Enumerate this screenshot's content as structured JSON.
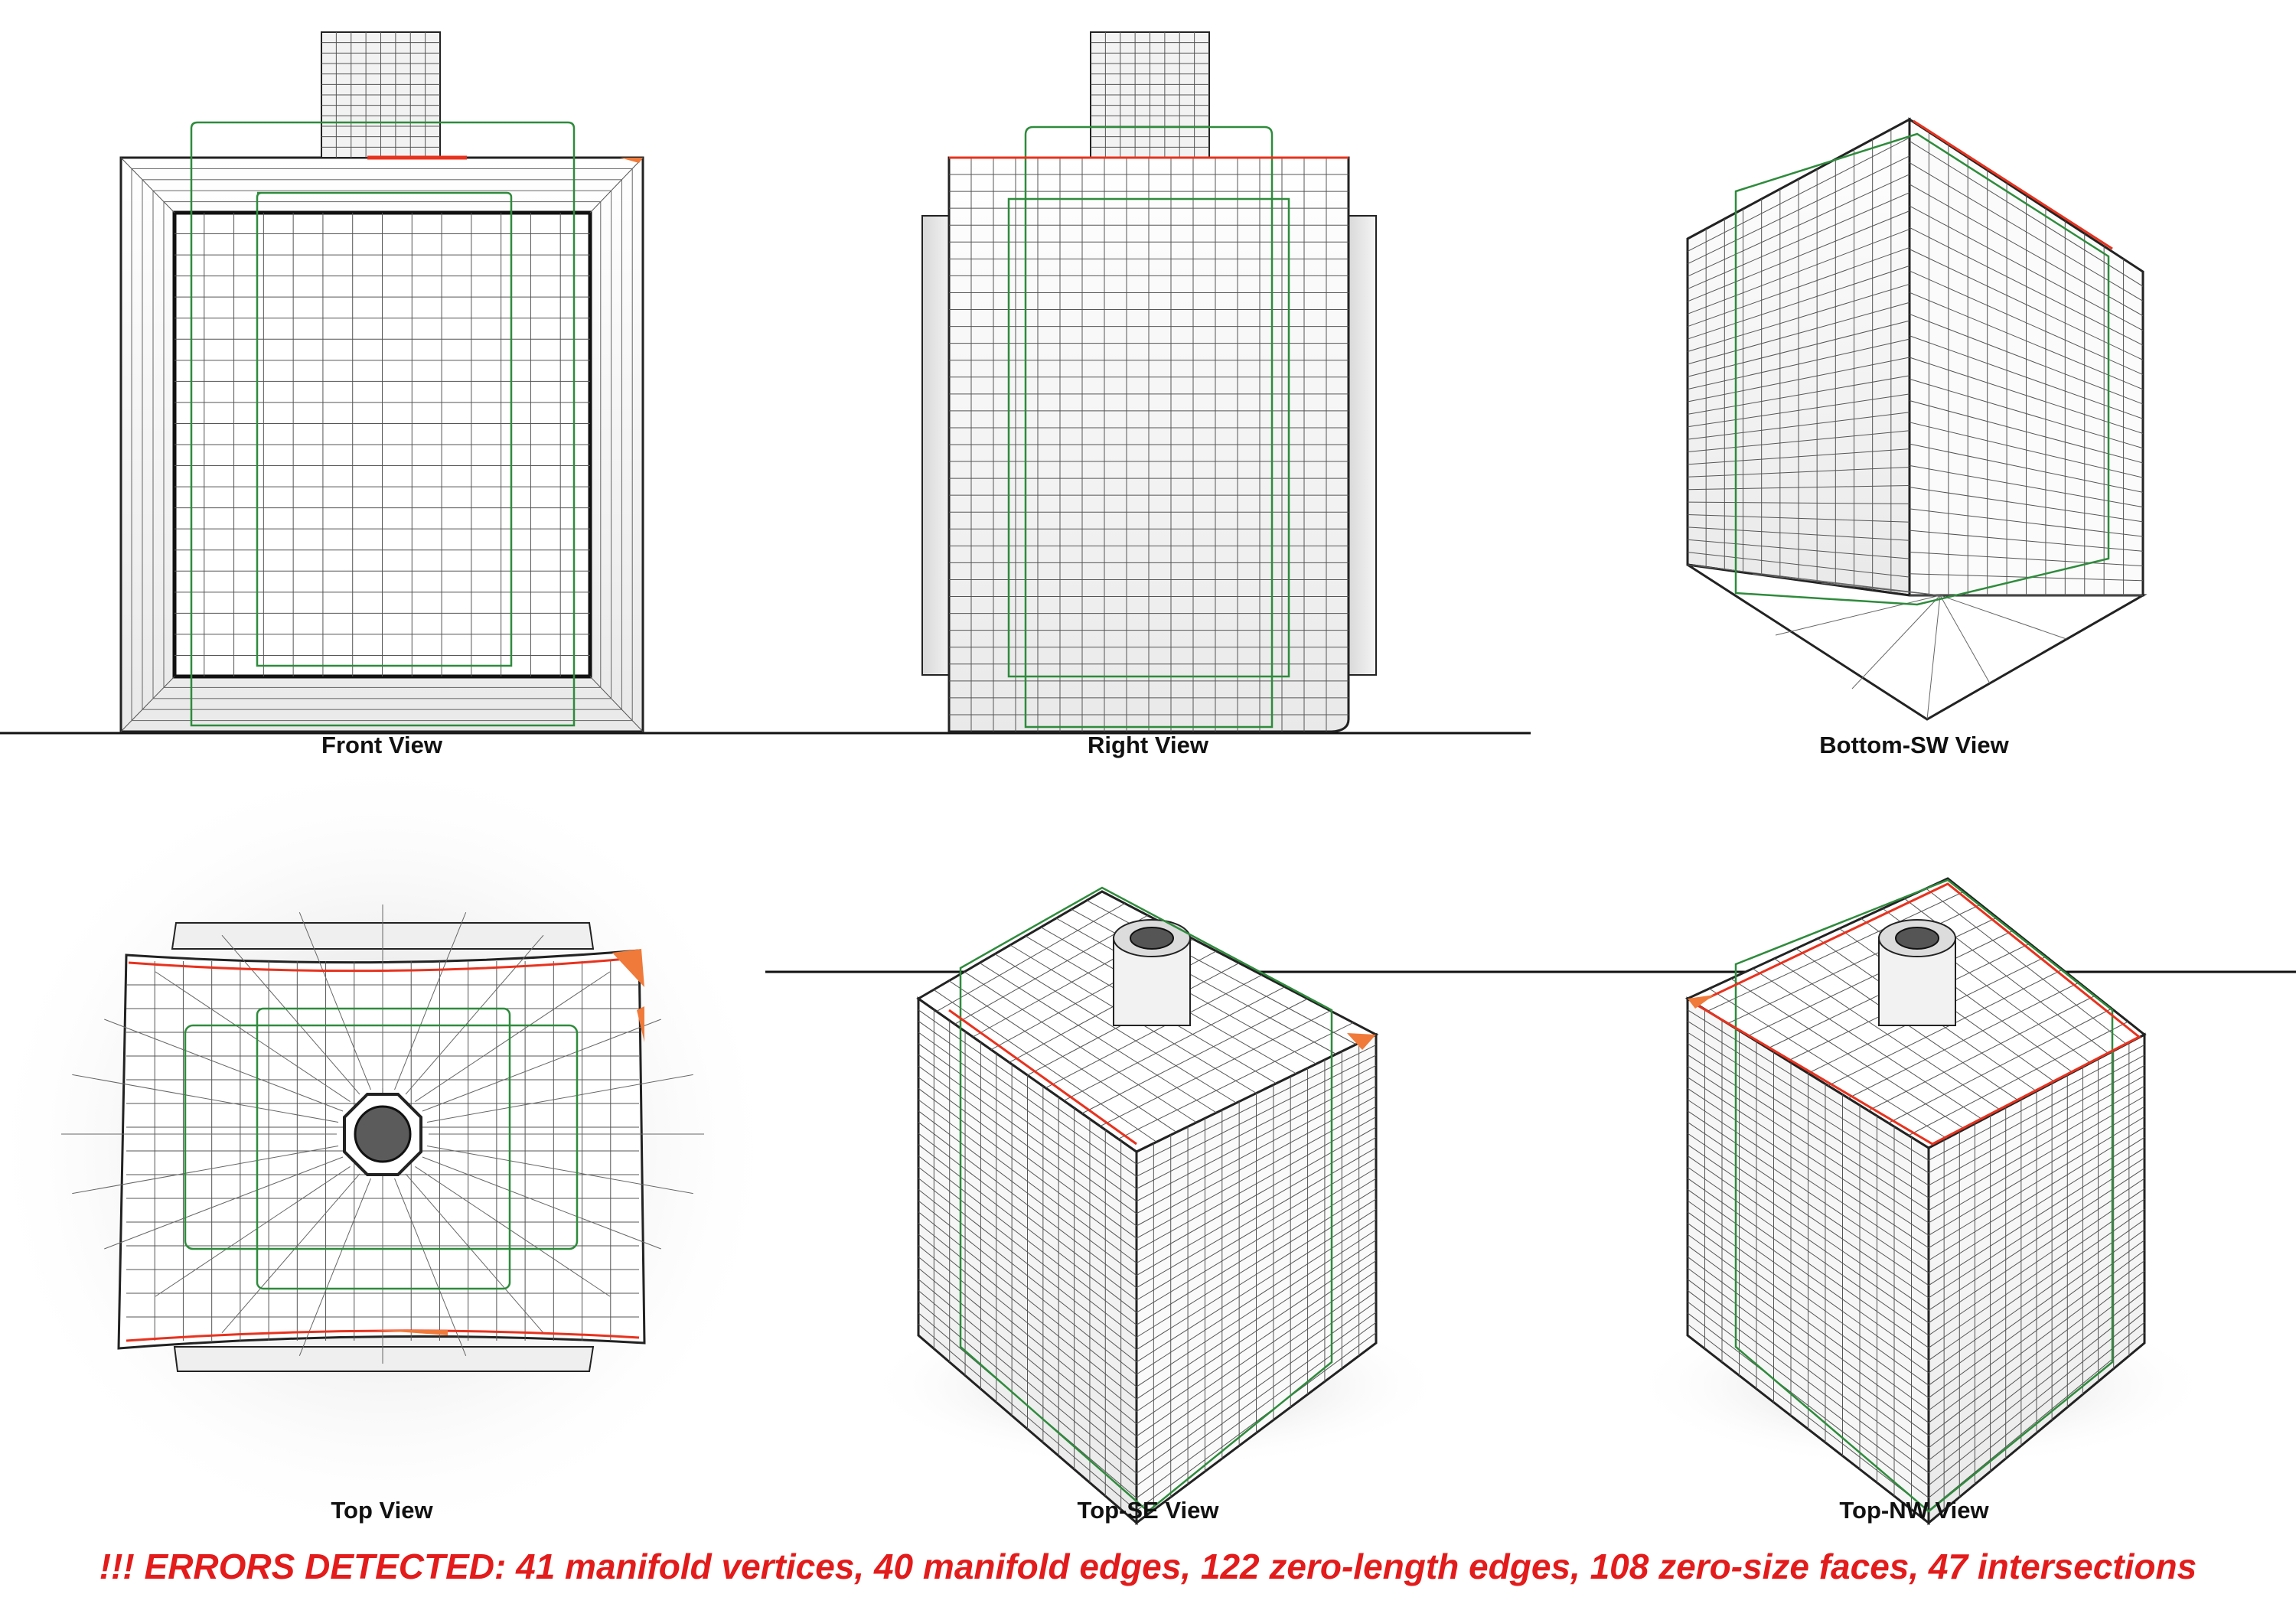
{
  "views": [
    {
      "id": "front",
      "label": "Front View"
    },
    {
      "id": "right",
      "label": "Right View"
    },
    {
      "id": "bottom_sw",
      "label": "Bottom-SW View"
    },
    {
      "id": "top",
      "label": "Top View"
    },
    {
      "id": "top_se",
      "label": "Top-SE View"
    },
    {
      "id": "top_nw",
      "label": "Top-NW View"
    }
  ],
  "error_message": "!!! ERRORS DETECTED: 41 manifold vertices, 40 manifold edges, 122 zero-length edges, 108 zero-size faces, 47 intersections",
  "colors": {
    "error_text": "#e31b1b",
    "mesh_line": "#333333",
    "outline_green": "#2e8b3c",
    "error_edge_red": "#e8321e",
    "error_face_orange": "#f07a3a",
    "ground_line": "#111111"
  }
}
